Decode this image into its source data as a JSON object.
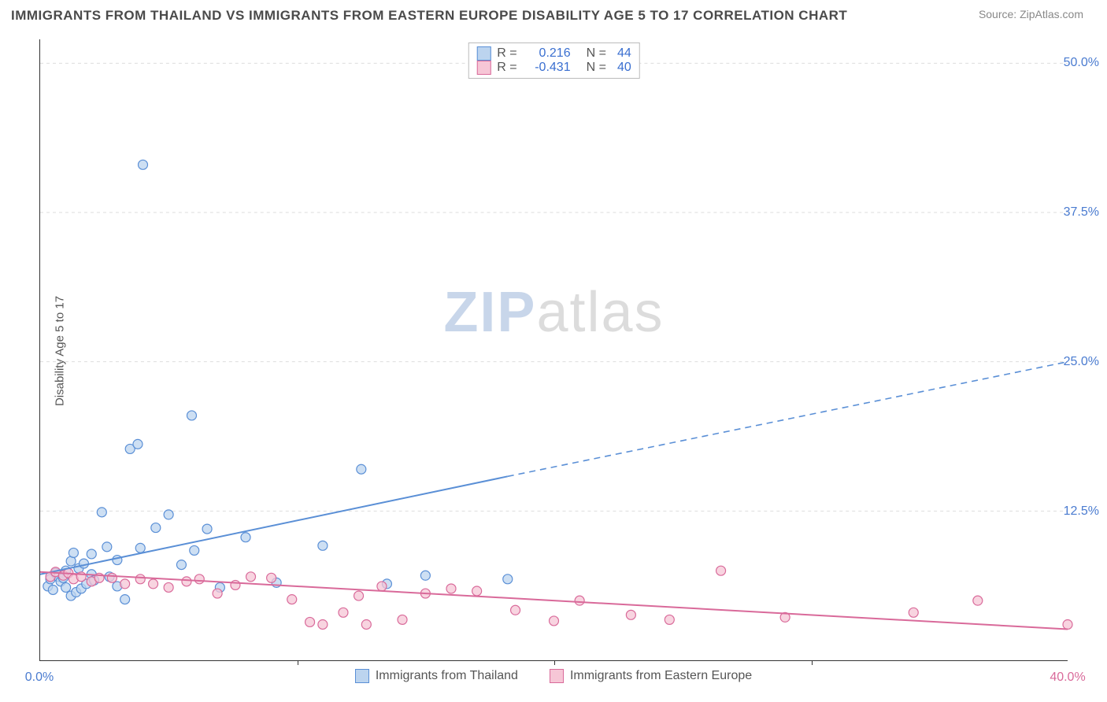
{
  "title": "IMMIGRANTS FROM THAILAND VS IMMIGRANTS FROM EASTERN EUROPE DISABILITY AGE 5 TO 17 CORRELATION CHART",
  "source": "Source: ZipAtlas.com",
  "ylabel": "Disability Age 5 to 17",
  "watermark_zip": "ZIP",
  "watermark_atlas": "atlas",
  "chart": {
    "type": "scatter",
    "xlim": [
      0,
      40
    ],
    "ylim": [
      0,
      52
    ],
    "yticks": [
      {
        "v": 12.5,
        "label": "12.5%"
      },
      {
        "v": 25.0,
        "label": "25.0%"
      },
      {
        "v": 37.5,
        "label": "37.5%"
      },
      {
        "v": 50.0,
        "label": "50.0%"
      }
    ],
    "xticks": [
      {
        "v": 0,
        "label": "0.0%"
      },
      {
        "v": 40,
        "label": "40.0%"
      }
    ],
    "xminor_ticks": [
      10,
      20,
      30
    ],
    "ytick_color": "#4a7bd0",
    "xtick_left_color": "#4a7bd0",
    "xtick_right_color": "#d96a9a",
    "grid_color": "#dddddd",
    "background_color": "#ffffff",
    "marker_radius": 6,
    "marker_stroke_width": 1.2,
    "line_width": 2
  },
  "series": [
    {
      "id": "thailand",
      "label": "Immigrants from Thailand",
      "fill": "#bcd4ef",
      "stroke": "#5a8fd6",
      "r_label": "R =",
      "r_value": "0.216",
      "n_label": "N =",
      "n_value": "44",
      "stat_color": "#3a6fd0",
      "trend": {
        "x1": 0,
        "y1": 7.2,
        "x2_solid": 18.2,
        "y2_solid": 15.4,
        "x2": 40,
        "y2": 25.0
      },
      "points": [
        [
          0.3,
          6.2
        ],
        [
          0.4,
          6.8
        ],
        [
          0.5,
          5.9
        ],
        [
          0.6,
          7.3
        ],
        [
          0.7,
          7.0
        ],
        [
          0.8,
          6.6
        ],
        [
          0.9,
          6.9
        ],
        [
          1.0,
          7.5
        ],
        [
          1.0,
          6.1
        ],
        [
          1.2,
          8.3
        ],
        [
          1.2,
          5.4
        ],
        [
          1.3,
          9.0
        ],
        [
          1.4,
          5.7
        ],
        [
          1.5,
          7.7
        ],
        [
          1.6,
          6.0
        ],
        [
          1.7,
          8.1
        ],
        [
          1.8,
          6.4
        ],
        [
          2.0,
          8.9
        ],
        [
          2.0,
          7.2
        ],
        [
          2.1,
          6.7
        ],
        [
          2.4,
          12.4
        ],
        [
          2.6,
          9.5
        ],
        [
          2.7,
          7.0
        ],
        [
          3.0,
          6.2
        ],
        [
          3.0,
          8.4
        ],
        [
          3.3,
          5.1
        ],
        [
          3.5,
          17.7
        ],
        [
          3.8,
          18.1
        ],
        [
          3.9,
          9.4
        ],
        [
          4.0,
          41.5
        ],
        [
          4.5,
          11.1
        ],
        [
          5.0,
          12.2
        ],
        [
          5.5,
          8.0
        ],
        [
          5.9,
          20.5
        ],
        [
          6.0,
          9.2
        ],
        [
          6.5,
          11.0
        ],
        [
          7.0,
          6.1
        ],
        [
          8.0,
          10.3
        ],
        [
          9.2,
          6.5
        ],
        [
          11.0,
          9.6
        ],
        [
          12.5,
          16.0
        ],
        [
          13.5,
          6.4
        ],
        [
          18.2,
          6.8
        ],
        [
          15.0,
          7.1
        ]
      ]
    },
    {
      "id": "eastern_europe",
      "label": "Immigrants from Eastern Europe",
      "fill": "#f6c6d6",
      "stroke": "#d96a9a",
      "r_label": "R =",
      "r_value": "-0.431",
      "n_label": "N =",
      "n_value": "40",
      "stat_color": "#3a6fd0",
      "trend": {
        "x1": 0,
        "y1": 7.4,
        "x2_solid": 40,
        "y2_solid": 2.6,
        "x2": 40,
        "y2": 2.6
      },
      "points": [
        [
          0.4,
          7.0
        ],
        [
          0.6,
          7.4
        ],
        [
          0.9,
          7.1
        ],
        [
          1.1,
          7.3
        ],
        [
          1.3,
          6.8
        ],
        [
          1.6,
          7.0
        ],
        [
          2.0,
          6.6
        ],
        [
          2.3,
          6.9
        ],
        [
          2.8,
          6.9
        ],
        [
          3.3,
          6.4
        ],
        [
          3.9,
          6.8
        ],
        [
          4.4,
          6.4
        ],
        [
          5.0,
          6.1
        ],
        [
          5.7,
          6.6
        ],
        [
          6.2,
          6.8
        ],
        [
          6.9,
          5.6
        ],
        [
          7.6,
          6.3
        ],
        [
          8.2,
          7.0
        ],
        [
          9.0,
          6.9
        ],
        [
          9.8,
          5.1
        ],
        [
          10.5,
          3.2
        ],
        [
          11.0,
          3.0
        ],
        [
          11.8,
          4.0
        ],
        [
          12.4,
          5.4
        ],
        [
          12.7,
          3.0
        ],
        [
          13.3,
          6.2
        ],
        [
          14.1,
          3.4
        ],
        [
          15.0,
          5.6
        ],
        [
          16.0,
          6.0
        ],
        [
          17.0,
          5.8
        ],
        [
          18.5,
          4.2
        ],
        [
          20.0,
          3.3
        ],
        [
          21.0,
          5.0
        ],
        [
          23.0,
          3.8
        ],
        [
          24.5,
          3.4
        ],
        [
          26.5,
          7.5
        ],
        [
          29.0,
          3.6
        ],
        [
          34.0,
          4.0
        ],
        [
          36.5,
          5.0
        ],
        [
          40.0,
          3.0
        ]
      ]
    }
  ]
}
